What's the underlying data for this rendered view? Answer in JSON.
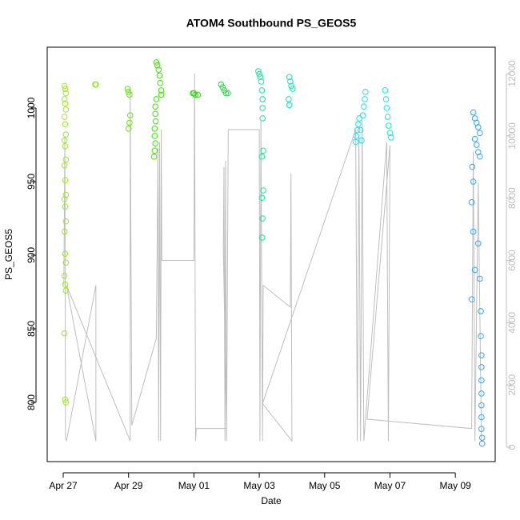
{
  "chart_data": {
    "type": "scatter",
    "title": "ATOM4 Southbound PS_GEOS5",
    "xlabel": "Date",
    "ylabel": "PS_GEOS5",
    "xlim": [
      -0.49,
      13.22
    ],
    "xticks": [
      {
        "value": 0,
        "label": "Apr 27"
      },
      {
        "value": 2,
        "label": "Apr 29"
      },
      {
        "value": 4,
        "label": "May 01"
      },
      {
        "value": 6,
        "label": "May 03"
      },
      {
        "value": 8,
        "label": "May 05"
      },
      {
        "value": 10,
        "label": "May 07"
      },
      {
        "value": 12,
        "label": "May 09"
      }
    ],
    "ylim": [
      759.8,
      1041.3
    ],
    "yticks": [
      800,
      850,
      900,
      950,
      1000
    ],
    "y2lim": [
      -462,
      12847
    ],
    "y2ticks": [
      0,
      2000,
      4000,
      6000,
      8000,
      10000,
      12000
    ],
    "series": [
      {
        "type": "scatter",
        "color": "#9fe82a",
        "x": [
          0.04,
          0.06,
          0.08,
          0.04,
          0.06,
          0.08,
          0.04,
          0.06,
          0.08,
          0.04,
          0.06,
          0.08,
          0.04,
          0.06,
          0.08,
          0.04,
          0.06,
          0.08,
          0.04,
          0.06,
          0.08,
          0.04,
          0.06,
          0.08,
          0.04,
          0.06,
          0.08
        ],
        "values": [
          1015,
          1013,
          1010,
          1006,
          1003,
          999,
          994,
          989,
          982,
          978,
          974,
          965,
          961,
          951,
          941,
          938,
          933,
          923,
          916,
          901,
          895,
          886,
          880,
          876,
          847,
          802,
          800
        ]
      },
      {
        "type": "scatter",
        "color": "#8ce61a",
        "x": [
          0.98,
          1.0
        ],
        "values": [
          1016,
          1016
        ]
      },
      {
        "type": "scatter",
        "color": "#66e60c",
        "x": [
          1.97,
          2.0,
          2.03,
          2.05,
          2.03,
          2.0
        ],
        "values": [
          1013,
          1011,
          1009,
          995,
          990,
          986
        ]
      },
      {
        "type": "scatter",
        "color": "#3ee600",
        "x": [
          2.85,
          2.88,
          2.92,
          2.95,
          2.97,
          3.0,
          3.0,
          2.85,
          2.82,
          2.82,
          2.83,
          2.8,
          2.8,
          2.82,
          2.8,
          2.78
        ],
        "values": [
          1031,
          1029,
          1026,
          1022,
          1017,
          1012,
          1009,
          1006,
          1001,
          996,
          991,
          986,
          981,
          976,
          971,
          967
        ]
      },
      {
        "type": "scatter",
        "color": "#22e600",
        "x": [
          3.97,
          4.0,
          4.04,
          4.12
        ],
        "values": [
          1010,
          1010,
          1009,
          1009
        ]
      },
      {
        "type": "scatter",
        "color": "#14e53a",
        "x": [
          4.83,
          4.88,
          4.93,
          4.98,
          5.04
        ],
        "values": [
          1016,
          1014,
          1012,
          1010,
          1010
        ]
      },
      {
        "type": "scatter",
        "color": "#14e6a0",
        "x": [
          5.97,
          6.0,
          6.03,
          6.06,
          6.08,
          6.1,
          6.1,
          6.1,
          6.12,
          6.08,
          6.12,
          6.08,
          6.1,
          6.09
        ],
        "values": [
          1025,
          1023,
          1021,
          1018,
          1012,
          1006,
          1000,
          993,
          971,
          967,
          944,
          939,
          925,
          912
        ]
      },
      {
        "type": "scatter",
        "color": "#14e6b4",
        "x": [
          6.92,
          6.95,
          6.98,
          7.02,
          6.9,
          6.92
        ],
        "values": [
          1021,
          1018,
          1015,
          1013,
          1006,
          1002
        ]
      },
      {
        "type": "scatter",
        "color": "#1ee1f0",
        "x": [
          8.95,
          8.97,
          9.0,
          9.03,
          9.06,
          9.1,
          9.13,
          9.17,
          9.2,
          9.23,
          9.25
        ],
        "values": [
          977,
          981,
          985,
          989,
          993,
          985,
          978,
          995,
          1001,
          1006,
          1011
        ]
      },
      {
        "type": "scatter",
        "color": "#14e6eb",
        "x": [
          9.85,
          9.88,
          9.9,
          9.93,
          9.96,
          10.0,
          10.03
        ],
        "values": [
          1012,
          1006,
          1000,
          994,
          988,
          983,
          980
        ]
      },
      {
        "type": "scatter",
        "color": "#3ca5eb",
        "x": [
          12.55,
          12.6,
          12.65,
          12.7,
          12.75,
          12.6,
          12.65,
          12.7,
          12.75,
          12.52,
          12.55,
          12.5,
          12.55,
          12.7,
          12.6,
          12.75,
          12.5,
          12.78,
          12.78,
          12.8,
          12.8,
          12.8,
          12.8,
          12.8,
          12.8,
          12.8,
          12.82,
          12.82
        ],
        "values": [
          997,
          993,
          990,
          987,
          983,
          979,
          975,
          970,
          967,
          960,
          950,
          936,
          916,
          908,
          890,
          884,
          870,
          862,
          845,
          832,
          824,
          815,
          806,
          798,
          790,
          782,
          776,
          772
        ]
      },
      {
        "type": "line",
        "axis": "y2",
        "color": "#bebebe",
        "x": [
          0.02,
          0.05,
          0.07,
          0.1,
          1.0,
          1.0,
          0.1,
          2.05,
          2.05,
          2.1,
          2.85,
          2.9,
          2.92,
          2.95,
          2.98,
          3.0,
          3.02,
          4.0,
          4.02,
          4.05,
          4.07,
          5.0,
          4.9,
          4.92,
          4.95,
          4.97,
          5.0,
          5.05,
          6.0,
          6.02,
          6.05,
          6.1,
          6.12,
          6.95,
          6.97,
          7.0,
          6.1,
          8.95,
          9.0,
          9.05,
          9.1,
          9.15,
          9.2,
          9.9,
          9.95,
          10.0,
          9.3,
          12.5,
          12.55,
          12.6,
          12.7,
          12.8
        ],
        "values": [
          5200,
          10000,
          300,
          200,
          5200,
          200,
          5200,
          200,
          11500,
          700,
          3500,
          9600,
          200,
          9800,
          200,
          10200,
          6000,
          6000,
          12000,
          200,
          600,
          600,
          6400,
          9000,
          200,
          9200,
          200,
          10200,
          10200,
          200,
          10500,
          200,
          5200,
          4500,
          8800,
          200,
          1400,
          10200,
          200,
          10000,
          200,
          10500,
          200,
          9800,
          200,
          9700,
          900,
          600,
          9500,
          200,
          8500,
          200
        ]
      }
    ]
  }
}
